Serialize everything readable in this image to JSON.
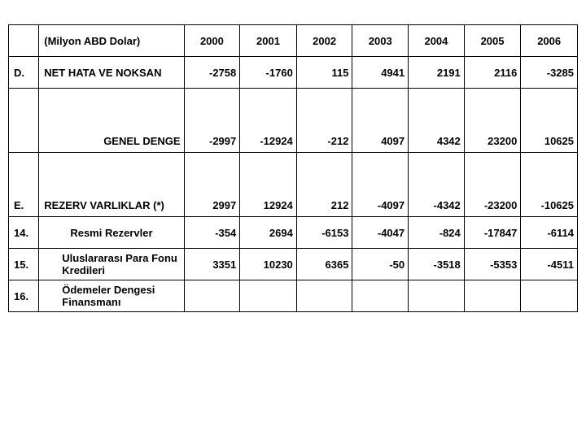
{
  "table": {
    "header": {
      "label": "(Milyon ABD Dolar)",
      "years": [
        "2000",
        "2001",
        "2002",
        "2003",
        "2004",
        "2005",
        "2006"
      ]
    },
    "rows": [
      {
        "idx": "D.",
        "label": "NET HATA VE NOKSAN",
        "align": "left",
        "tall": false,
        "blank_tail": false,
        "cells": [
          "-2758",
          "-1760",
          "115",
          "4941",
          "2191",
          "2116",
          "-3285"
        ]
      },
      {
        "idx": "",
        "label": "GENEL DENGE",
        "align": "right",
        "tall": true,
        "blank_tail": false,
        "cells": [
          "-2997",
          "-12924",
          "-212",
          "4097",
          "4342",
          "23200",
          "10625"
        ]
      },
      {
        "idx": "E.",
        "label": "REZERV VARLIKLAR  (*)",
        "align": "left",
        "tall": true,
        "blank_tail": false,
        "cells": [
          "2997",
          "12924",
          "212",
          "-4097",
          "-4342",
          "-23200",
          "-10625"
        ]
      },
      {
        "idx": "14.",
        "label": "Resmi Rezervler",
        "align": "center",
        "tall": false,
        "blank_tail": false,
        "cells": [
          "-354",
          "2694",
          "-6153",
          "-4047",
          "-824",
          "-17847",
          "-6114"
        ]
      },
      {
        "idx": "15.",
        "label": "Uluslararası Para Fonu Kredileri",
        "align": "indent",
        "tall": false,
        "blank_tail": false,
        "cells": [
          "3351",
          "10230",
          "6365",
          "-50",
          "-3518",
          "-5353",
          "-4511"
        ]
      },
      {
        "idx": "16.",
        "label": "Ödemeler Dengesi Finansmanı",
        "align": "indent",
        "tall": false,
        "blank_tail": true,
        "cells": [
          "",
          "",
          "",
          "",
          "",
          "",
          ""
        ]
      }
    ]
  }
}
